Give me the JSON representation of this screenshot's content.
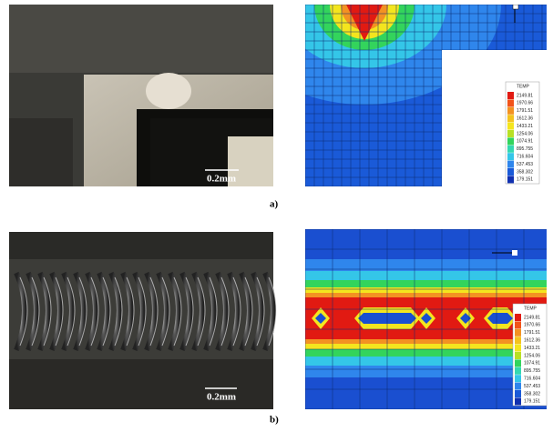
{
  "panels": [
    {
      "label": "a)",
      "photo_scale": "0.2mm",
      "legend": {
        "title": "TEMP",
        "values": [
          2149.81,
          1970.66,
          1791.51,
          1612.36,
          1433.21,
          1254.06,
          1074.91,
          895.755,
          716.604,
          537.453,
          358.302,
          179.151
        ]
      }
    },
    {
      "label": "b)",
      "photo_scale": "0.2mm",
      "legend": {
        "title": "TEMP",
        "values": [
          2149.81,
          1970.66,
          1791.51,
          1612.36,
          1433.21,
          1254.06,
          1074.91,
          895.755,
          716.604,
          537.453,
          358.302,
          179.151
        ]
      }
    }
  ]
}
